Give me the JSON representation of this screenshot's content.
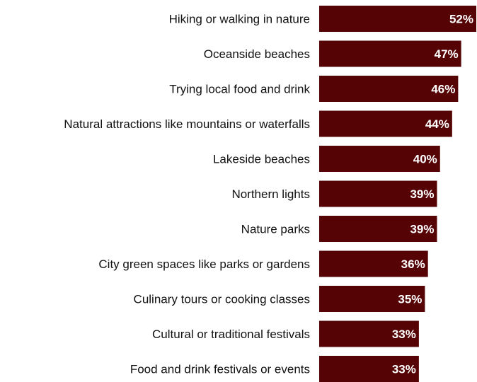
{
  "chart_data": {
    "type": "bar",
    "orientation": "horizontal",
    "categories": [
      "Hiking or walking in nature",
      "Oceanside beaches",
      "Trying local food and drink",
      "Natural attractions like mountains or waterfalls",
      "Lakeside beaches",
      "Northern lights",
      "Nature parks",
      "City green spaces like parks or gardens",
      "Culinary tours or cooking classes",
      "Cultural or traditional festivals",
      "Food and drink festivals or events"
    ],
    "values": [
      52,
      47,
      46,
      44,
      40,
      39,
      39,
      36,
      35,
      33,
      33
    ],
    "value_labels": [
      "52%",
      "47%",
      "46%",
      "44%",
      "40%",
      "39%",
      "39%",
      "36%",
      "35%",
      "33%",
      "33%"
    ],
    "bar_color": "#560306",
    "value_label_color": "#ffffff",
    "xlim": [
      0,
      52
    ],
    "grid": false,
    "legend": "none"
  }
}
